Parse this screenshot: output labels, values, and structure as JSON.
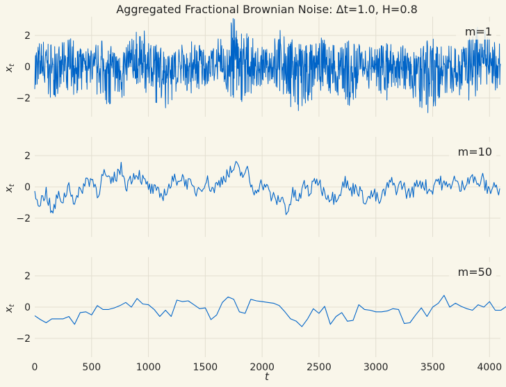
{
  "figure": {
    "title": "Aggregated Fractional Brownian Noise: Δt=1.0, H=0.8",
    "xlabel": "t",
    "colors": {
      "background": "#f9f6ea",
      "grid": "#e2ded0",
      "line": "#0064c8",
      "text": "#222222"
    }
  },
  "chart_data": [
    {
      "type": "line",
      "legend": "m=1",
      "ylabel": "x_t",
      "xlim": [
        0,
        4096
      ],
      "ylim": [
        -3.2,
        3.2
      ],
      "yticks": [
        -2,
        0,
        2
      ],
      "x_tick_labels_visible": false,
      "grid": true,
      "legend_position": "top-right",
      "points": 4096,
      "note": "dense noise series; sample envelope below",
      "envelope_min": [
        -1.6,
        -2.3,
        -1.9,
        -2.1,
        -1.7,
        -1.5,
        -2.6,
        -3.0,
        -1.8,
        -1.3,
        -2.0,
        -2.9,
        -2.2,
        -1.9,
        -1.6,
        -1.0,
        -0.9,
        -2.5,
        -2.3,
        -1.4,
        -1.1,
        -1.8,
        -2.7,
        -3.1,
        -2.0,
        -1.6,
        -2.2,
        -2.8,
        -1.9,
        -1.5,
        -2.3,
        -1.7,
        -1.4,
        -2.6,
        -3.1,
        -2.0,
        -1.6,
        -2.4,
        -2.0,
        -1.8,
        -1.5
      ],
      "envelope_max": [
        1.6,
        1.8,
        1.3,
        2.0,
        1.1,
        1.5,
        1.8,
        1.0,
        1.5,
        2.7,
        1.7,
        1.3,
        1.2,
        1.6,
        1.8,
        1.0,
        2.1,
        3.2,
        2.4,
        1.6,
        1.1,
        2.5,
        1.8,
        1.4,
        1.7,
        2.0,
        1.2,
        1.9,
        1.4,
        1.3,
        1.5,
        1.7,
        1.8,
        1.0,
        2.1,
        1.6,
        1.3,
        1.9,
        2.6,
        2.3,
        1.4
      ]
    },
    {
      "type": "line",
      "legend": "m=10",
      "ylabel": "x_t",
      "xlim": [
        0,
        4096
      ],
      "ylim": [
        -3.2,
        3.2
      ],
      "yticks": [
        -2,
        0,
        2
      ],
      "x_tick_labels_visible": false,
      "grid": true,
      "legend_position": "top-right",
      "x_step": 10,
      "values_sampled_every_50": [
        -0.5,
        -1.0,
        -0.3,
        -1.8,
        -0.6,
        -0.8,
        0.2,
        -1.1,
        -0.2,
        0.4,
        0.5,
        -0.4,
        0.9,
        0.2,
        0.6,
        1.2,
        0.1,
        0.7,
        0.9,
        0.3,
        -0.1,
        -0.3,
        -0.6,
        -0.2,
        0.3,
        0.6,
        0.5,
        0.1,
        -0.3,
        0.1,
        0.4,
        -0.2,
        0.2,
        0.7,
        0.9,
        1.3,
        0.8,
        1.0,
        -0.3,
        0.1,
        0.2,
        -0.5,
        -0.9,
        -0.7,
        -1.6,
        -0.4,
        -0.9,
        0.2,
        -0.4,
        0.6,
        -0.1,
        -0.5,
        -0.7,
        -0.4,
        0.4,
        -0.3,
        0.1,
        -0.6,
        -0.8,
        -0.4,
        -1.0,
        -0.3,
        0.3,
        -0.1,
        0.2,
        -0.5,
        -0.2,
        0.4,
        0.1,
        -0.3,
        0.5,
        0.2,
        -0.1,
        0.6,
        -0.2,
        0.3,
        0.8,
        0.1,
        0.5,
        -0.3,
        0.2,
        -0.4
      ]
    },
    {
      "type": "line",
      "legend": "m=50",
      "ylabel": "x_t",
      "xlim": [
        0,
        4096
      ],
      "ylim": [
        -3.2,
        3.2
      ],
      "yticks": [
        -2,
        0,
        2
      ],
      "xticks": [
        0,
        500,
        1000,
        1500,
        2000,
        2500,
        3000,
        3500,
        4000
      ],
      "xlabel": "t",
      "grid": true,
      "legend_position": "top-right",
      "x_step": 50,
      "values": [
        -0.55,
        -0.8,
        -1.0,
        -0.75,
        -0.75,
        -0.75,
        -0.6,
        -1.1,
        -0.35,
        -0.3,
        -0.5,
        0.1,
        -0.15,
        -0.15,
        -0.05,
        0.1,
        0.3,
        0.0,
        0.55,
        0.2,
        0.15,
        -0.15,
        -0.6,
        -0.2,
        -0.6,
        0.45,
        0.35,
        0.4,
        0.15,
        -0.1,
        -0.05,
        -0.8,
        -0.5,
        0.3,
        0.65,
        0.5,
        -0.3,
        -0.4,
        0.5,
        0.4,
        0.35,
        0.3,
        0.25,
        0.1,
        -0.3,
        -0.75,
        -0.9,
        -1.25,
        -0.75,
        -0.1,
        -0.4,
        0.05,
        -1.1,
        -0.6,
        -0.35,
        -0.9,
        -0.85,
        0.15,
        -0.15,
        -0.2,
        -0.3,
        -0.3,
        -0.25,
        -0.1,
        -0.15,
        -1.05,
        -1.0,
        -0.5,
        -0.05,
        -0.6,
        0.0,
        0.25,
        0.75,
        0.0,
        0.25,
        0.05,
        -0.1,
        -0.2,
        0.15,
        0.0,
        0.35,
        -0.2,
        -0.2,
        0.05
      ]
    }
  ]
}
